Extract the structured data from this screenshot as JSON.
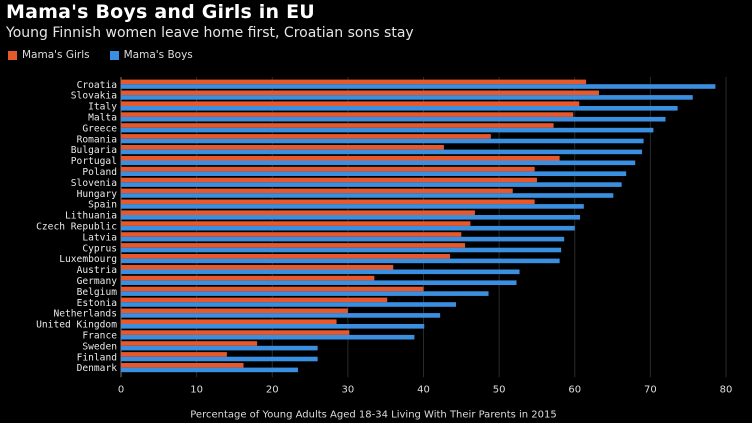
{
  "chart_data": {
    "type": "bar",
    "orientation": "horizontal",
    "title": "Mama's Boys and Girls in EU",
    "subtitle": "Young Finnish women leave home first, Croatian sons stay",
    "xlabel": "Percentage of Young Adults Aged 18-34 Living With Their Parents in 2015",
    "ylabel": "",
    "xlim": [
      0,
      80
    ],
    "xticks": [
      "0",
      "10",
      "20",
      "30",
      "40",
      "50",
      "60",
      "70",
      "80"
    ],
    "categories": [
      "Croatia",
      "Slovakia",
      "Italy",
      "Malta",
      "Greece",
      "Romania",
      "Bulgaria",
      "Portugal",
      "Poland",
      "Slovenia",
      "Hungary",
      "Spain",
      "Lithuania",
      "Czech Republic",
      "Latvia",
      "Cyprus",
      "Luxembourg",
      "Austria",
      "Germany",
      "Belgium",
      "Estonia",
      "Netherlands",
      "United Kingdom",
      "France",
      "Sweden",
      "Finland",
      "Denmark"
    ],
    "series": [
      {
        "name": "Mama's Girls",
        "color": "#e8582d",
        "values": [
          61.5,
          63.2,
          60.6,
          59.8,
          57.2,
          48.9,
          42.7,
          58.0,
          54.7,
          55.0,
          51.8,
          54.7,
          46.8,
          46.2,
          45.0,
          45.5,
          43.5,
          36.0,
          33.5,
          40.0,
          35.2,
          30.0,
          28.5,
          30.2,
          18.0,
          14.0,
          16.2
        ]
      },
      {
        "name": "Mama's Boys",
        "color": "#3b8fe0",
        "values": [
          78.6,
          75.6,
          73.6,
          72.0,
          70.4,
          69.1,
          68.9,
          68.0,
          66.8,
          66.2,
          65.1,
          61.2,
          60.7,
          60.0,
          58.6,
          58.2,
          58.0,
          52.7,
          52.3,
          48.6,
          44.3,
          42.2,
          40.1,
          38.8,
          26.0,
          26.0,
          23.4
        ]
      }
    ]
  }
}
